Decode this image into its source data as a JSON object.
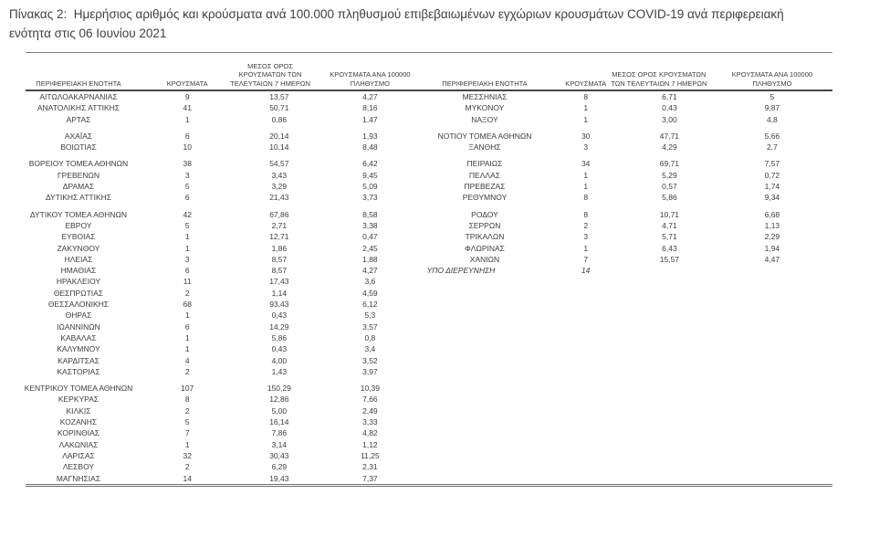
{
  "page": {
    "background_color": "#ffffff",
    "text_color": "#3d3d3d",
    "rule_color": "#6f6f6f"
  },
  "title": {
    "line1": "Πίνακας 2:  Ημερήσιος αριθμός και κρούσματα ανά 100.000 πληθυσμού επιβεβαιωμένων εγχώριων κρουσμάτων COVID-19 ανά περιφερειακή",
    "line2": "ενότητα στις 06 Ιουνίου 2021"
  },
  "columns": [
    "ΠΕΡΙΦΕΡΕΙΑΚΗ ΕΝΟΤΗΤΑ",
    "ΚΡΟΥΣΜΑΤΑ",
    "ΜΕΣΟΣ ΟΡΟΣ ΚΡΟΥΣΜΑΤΩΝ ΤΩΝ ΤΕΛΕΥΤΑΙΩΝ 7 ΗΜΕΡΩΝ",
    "ΚΡΟΥΣΜΑΤΑ ΑΝΑ 100000 ΠΛΗΘΥΣΜΟ"
  ],
  "tables": [
    {
      "name": "left",
      "rows": [
        {
          "cells": [
            "ΑΙΤΩΛΟΑΚΑΡΝΑΝΙΑΣ",
            "9",
            "13,57",
            "4,27"
          ]
        },
        {
          "cells": [
            "ΑΝΑΤΟΛΙΚΗΣ ΑΤΤΙΚΗΣ",
            "41",
            "50,71",
            "8,16"
          ]
        },
        {
          "cells": [
            "ΑΡΤΑΣ",
            "1",
            "0,86",
            "1,47"
          ]
        },
        {
          "cells": []
        },
        {
          "cells": [
            "ΑΧΑΪΑΣ",
            "6",
            "20,14",
            "1,93"
          ]
        },
        {
          "cells": [
            "ΒΟΙΩΤΙΑΣ",
            "10",
            "10,14",
            "8,48"
          ]
        },
        {
          "cells": []
        },
        {
          "cells": [
            "ΒΟΡΕΙΟΥ ΤΟΜΕΑ ΑΘΗΝΩΝ",
            "38",
            "54,57",
            "6,42"
          ]
        },
        {
          "cells": [
            "ΓΡΕΒΕΝΩΝ",
            "3",
            "3,43",
            "9,45"
          ]
        },
        {
          "cells": [
            "ΔΡΑΜΑΣ",
            "5",
            "3,29",
            "5,09"
          ]
        },
        {
          "cells": [
            "ΔΥΤΙΚΗΣ ΑΤΤΙΚΗΣ",
            "6",
            "21,43",
            "3,73"
          ]
        },
        {
          "cells": []
        },
        {
          "cells": [
            "ΔΥΤΙΚΟΥ ΤΟΜΕΑ ΑΘΗΝΩΝ",
            "42",
            "67,86",
            "8,58"
          ]
        },
        {
          "cells": [
            "ΕΒΡΟΥ",
            "5",
            "2,71",
            "3,38"
          ]
        },
        {
          "cells": [
            "ΕΥΒΟΙΑΣ",
            "1",
            "12,71",
            "0,47"
          ]
        },
        {
          "cells": [
            "ΖΑΚΥΝΘΟΥ",
            "1",
            "1,86",
            "2,45"
          ]
        },
        {
          "cells": [
            "ΗΛΕΙΑΣ",
            "3",
            "8,57",
            "1,88"
          ]
        },
        {
          "cells": [
            "ΗΜΑΘΙΑΣ",
            "6",
            "8,57",
            "4,27"
          ]
        },
        {
          "cells": [
            "ΗΡΑΚΛΕΙΟΥ",
            "11",
            "17,43",
            "3,6"
          ]
        },
        {
          "cells": [
            "ΘΕΣΠΡΩΤΙΑΣ",
            "2",
            "1,14",
            "4,59"
          ]
        },
        {
          "cells": [
            "ΘΕΣΣΑΛΟΝΙΚΗΣ",
            "68",
            "93,43",
            "6,12"
          ]
        },
        {
          "cells": [
            "ΘΗΡΑΣ",
            "1",
            "0,43",
            "5,3"
          ]
        },
        {
          "cells": [
            "ΙΩΑΝΝΙΝΩΝ",
            "6",
            "14,29",
            "3,57"
          ]
        },
        {
          "cells": [
            "ΚΑΒΑΛΑΣ",
            "1",
            "5,86",
            "0,8"
          ]
        },
        {
          "cells": [
            "ΚΑΛΥΜΝΟΥ",
            "1",
            "0,43",
            "3,4"
          ]
        },
        {
          "cells": [
            "ΚΑΡΔΙΤΣΑΣ",
            "4",
            "4,00",
            "3,52"
          ]
        },
        {
          "cells": [
            "ΚΑΣΤΟΡΙΑΣ",
            "2",
            "1,43",
            "3,97"
          ]
        },
        {
          "cells": []
        },
        {
          "cells": [
            "ΚΕΝΤΡΙΚΟΥ ΤΟΜΕΑ ΑΘΗΝΩΝ",
            "107",
            "150,29",
            "10,39"
          ]
        },
        {
          "cells": [
            "ΚΕΡΚΥΡΑΣ",
            "8",
            "12,86",
            "7,66"
          ]
        },
        {
          "cells": [
            "ΚΙΛΚΙΣ",
            "2",
            "5,00",
            "2,49"
          ]
        },
        {
          "cells": [
            "ΚΟΖΑΝΗΣ",
            "5",
            "16,14",
            "3,33"
          ]
        },
        {
          "cells": [
            "ΚΟΡΙΝΘΙΑΣ",
            "7",
            "7,86",
            "4,82"
          ]
        },
        {
          "cells": [
            "ΛΑΚΩΝΙΑΣ",
            "1",
            "3,14",
            "1,12"
          ]
        },
        {
          "cells": [
            "ΛΑΡΙΣΑΣ",
            "32",
            "30,43",
            "11,25"
          ]
        },
        {
          "cells": [
            "ΛΕΣΒΟΥ",
            "2",
            "6,29",
            "2,31"
          ]
        },
        {
          "cells": [
            "ΜΑΓΝΗΣΙΑΣ",
            "14",
            "19,43",
            "7,37"
          ]
        }
      ]
    },
    {
      "name": "right",
      "rows": [
        {
          "cells": [
            "ΜΕΣΣΗΝΙΑΣ",
            "8",
            "6,71",
            "5"
          ]
        },
        {
          "cells": [
            "ΜΥΚΟΝΟΥ",
            "1",
            "0,43",
            "9,87"
          ]
        },
        {
          "cells": [
            "ΝΑΞΟΥ",
            "1",
            "3,00",
            "4,8"
          ]
        },
        {
          "cells": []
        },
        {
          "cells": [
            "ΝΟΤΙΟΥ ΤΟΜΕΑ ΑΘΗΝΩΝ",
            "30",
            "47,71",
            "5,66"
          ]
        },
        {
          "cells": [
            "ΞΑΝΘΗΣ",
            "3",
            "4,29",
            "2,7"
          ]
        },
        {
          "cells": []
        },
        {
          "cells": [
            "ΠΕΙΡΑΙΩΣ",
            "34",
            "69,71",
            "7,57"
          ]
        },
        {
          "cells": [
            "ΠΕΛΛΑΣ",
            "1",
            "5,29",
            "0,72"
          ]
        },
        {
          "cells": [
            "ΠΡΕΒΕΖΑΣ",
            "1",
            "0,57",
            "1,74"
          ]
        },
        {
          "cells": [
            "ΡΕΘΥΜΝΟΥ",
            "8",
            "5,86",
            "9,34"
          ]
        },
        {
          "cells": []
        },
        {
          "cells": [
            "ΡΟΔΟΥ",
            "8",
            "10,71",
            "6,68"
          ]
        },
        {
          "cells": [
            "ΣΕΡΡΩΝ",
            "2",
            "4,71",
            "1,13"
          ]
        },
        {
          "cells": [
            "ΤΡΙΚΑΛΩΝ",
            "3",
            "5,71",
            "2,29"
          ]
        },
        {
          "cells": [
            "ΦΛΩΡΙΝΑΣ",
            "1",
            "6,43",
            "1,94"
          ]
        },
        {
          "cells": [
            "ΧΑΝΙΩΝ",
            "7",
            "15,57",
            "4,47"
          ]
        },
        {
          "cells": [
            "ΥΠΟ ΔΙΕΡΕΥΝΗΣΗ",
            "14",
            "",
            ""
          ],
          "em": true
        }
      ]
    }
  ]
}
